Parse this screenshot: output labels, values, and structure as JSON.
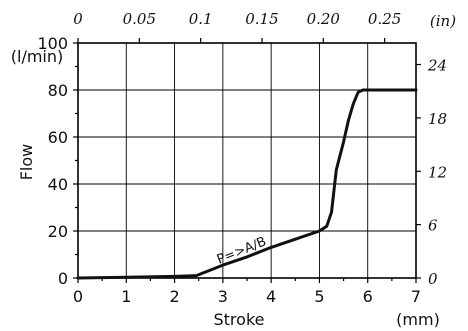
{
  "chart_data": {
    "type": "line",
    "xlabel": "Stroke",
    "xunit": "(mm)",
    "ylabel": "Flow",
    "yunit": "(l/min)",
    "xlim": [
      0,
      7
    ],
    "ylim": [
      0,
      100
    ],
    "x_ticks": [
      "0",
      "1",
      "2",
      "3",
      "4",
      "5",
      "6",
      "7"
    ],
    "y_ticks": [
      "0",
      "20",
      "40",
      "60",
      "80",
      "100"
    ],
    "top_axis": {
      "unit": "(in)",
      "ticks": [
        "0",
        "0.05",
        "0.1",
        "0.15",
        "0.20",
        "0.25"
      ],
      "values": [
        0,
        0.05,
        0.1,
        0.15,
        0.2,
        0.25
      ]
    },
    "right_axis": {
      "ticks": [
        "0",
        "6",
        "12",
        "18",
        "24"
      ],
      "values": [
        0,
        6,
        12,
        18,
        24
      ]
    },
    "grid": true,
    "series": [
      {
        "name": "P=>A/B",
        "x": [
          0,
          1,
          2,
          2.45,
          2.7,
          3.0,
          3.5,
          4.0,
          4.5,
          5.0,
          5.15,
          5.25,
          5.35,
          5.5,
          5.6,
          5.7,
          5.8,
          5.9,
          6.0,
          6.5,
          7.0
        ],
        "y": [
          0,
          0.3,
          0.7,
          1,
          3,
          5.5,
          9,
          13,
          16.5,
          20,
          22,
          28,
          46,
          58,
          67,
          74,
          79,
          80,
          80,
          80,
          80
        ]
      }
    ]
  }
}
